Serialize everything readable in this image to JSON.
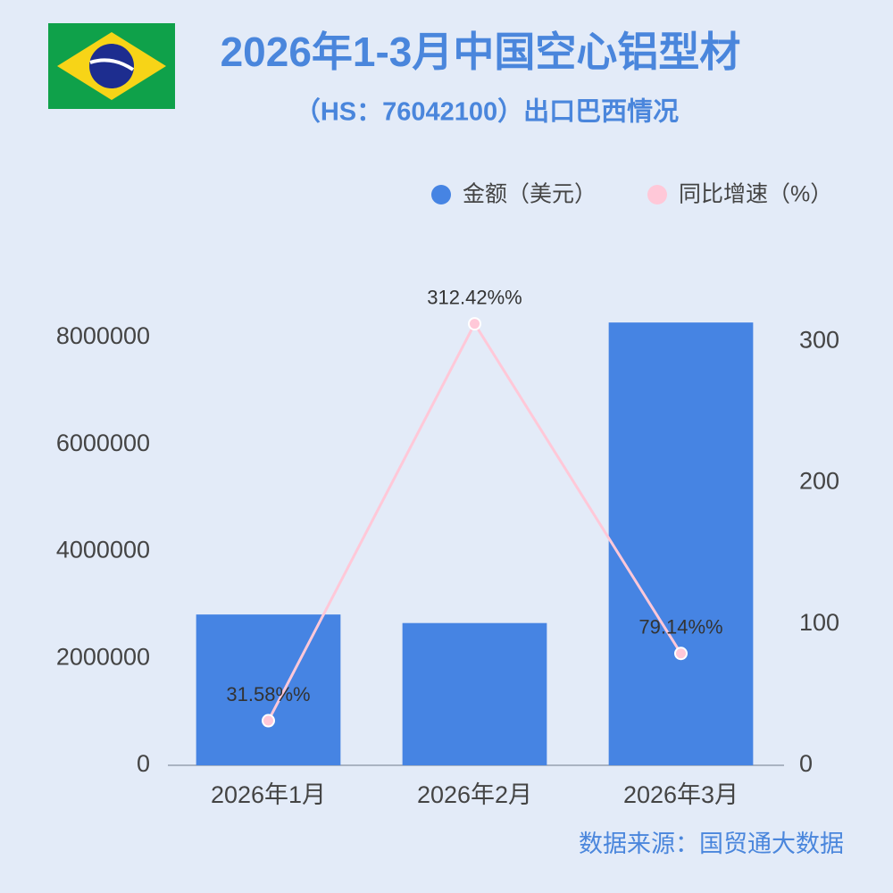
{
  "chart_data": {
    "type": "bar-line",
    "title": "2026年1-3月中国空心铝型材",
    "subtitle": "（HS：76042100）出口巴西情况",
    "source": "数据来源：国贸通大数据",
    "categories": [
      "2026年1月",
      "2026年2月",
      "2026年3月"
    ],
    "series": [
      {
        "name": "金额（美元）",
        "color": "#4684e3",
        "type": "bar",
        "values": [
          2820000,
          2660000,
          8280000
        ]
      },
      {
        "name": "同比增速（%）",
        "color": "#ffc8d8",
        "type": "line",
        "axis": "y2",
        "values": [
          31.58,
          312.42,
          79.14
        ],
        "value_labels": [
          "31.58%%",
          "312.42%%",
          "79.14%%"
        ]
      }
    ],
    "ylim": [
      0,
      8800000
    ],
    "yticks": [
      0,
      2000000,
      4000000,
      6000000,
      8000000
    ],
    "y2lim": [
      0,
      333
    ],
    "y2ticks": [
      0,
      100,
      200,
      300
    ],
    "grid": false
  }
}
